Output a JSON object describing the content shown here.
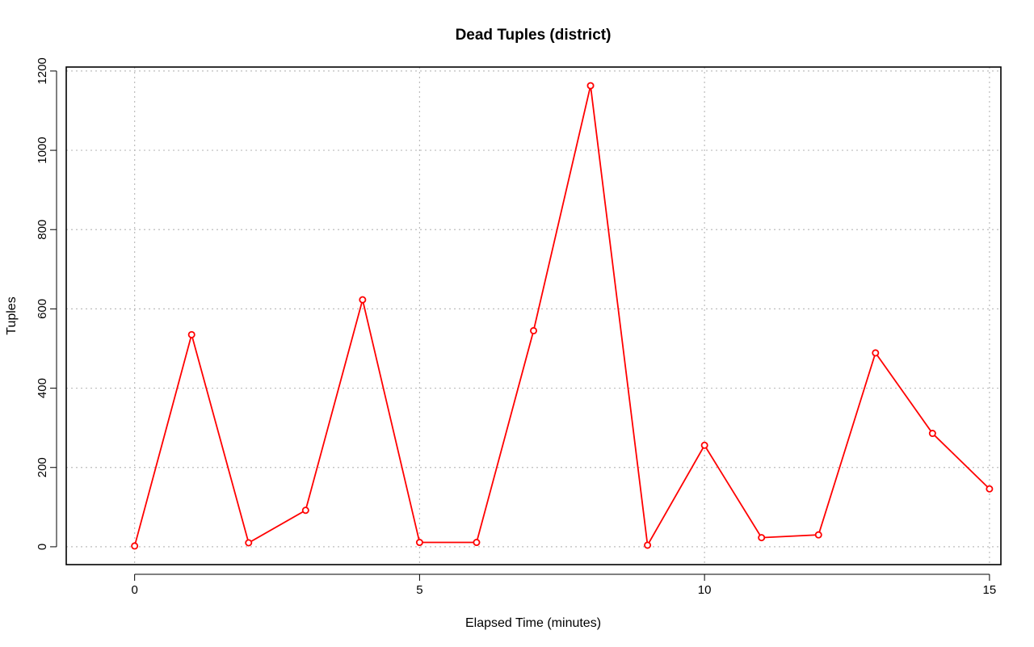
{
  "chart_data": {
    "type": "line",
    "title": "Dead Tuples (district)",
    "xlabel": "Elapsed Time (minutes)",
    "ylabel": "Tuples",
    "xlim": [
      -1.2,
      15.2
    ],
    "ylim": [
      -45,
      1210
    ],
    "xticks": [
      0,
      5,
      10,
      15
    ],
    "yticks": [
      0,
      200,
      400,
      600,
      800,
      1000,
      1200
    ],
    "grid": true,
    "series_color": "#ff0000",
    "series": [
      {
        "x": [
          0,
          1,
          2,
          3,
          4,
          5,
          6,
          7,
          8,
          9,
          10,
          11,
          12,
          13,
          14,
          15
        ],
        "values": [
          2,
          535,
          10,
          92,
          623,
          11,
          11,
          545,
          1163,
          4,
          256,
          23,
          30,
          489,
          286,
          146
        ]
      }
    ]
  }
}
